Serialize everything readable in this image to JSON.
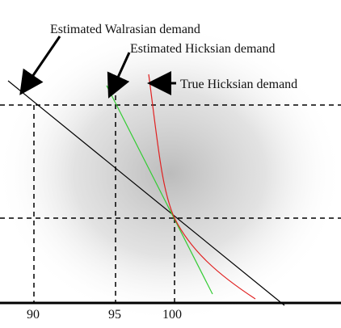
{
  "labels": {
    "walrasian": "Estimated Walrasian demand",
    "hicksian_est": "Estimated Hicksian demand",
    "hicksian_true": "True Hicksian demand"
  },
  "ticks": [
    "90",
    "95",
    "100"
  ],
  "colors": {
    "walrasian": "#000000",
    "hicksian_est": "#33cc33",
    "hicksian_true": "#e02020",
    "background_glow": "#bdbdbd"
  }
}
